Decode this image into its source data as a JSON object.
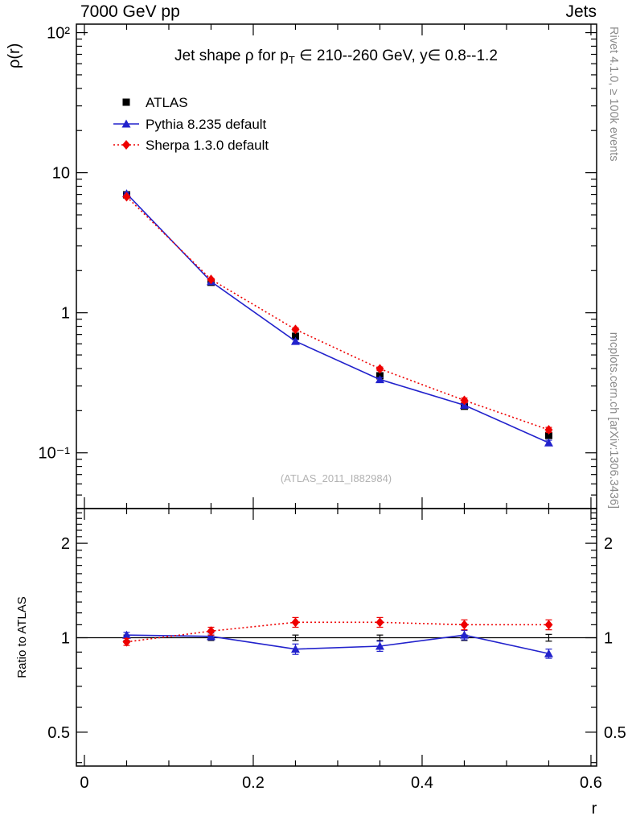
{
  "header": {
    "left": "7000 GeV pp",
    "right": "Jets"
  },
  "sidebar_right": {
    "top": "Rivet 4.1.0, ≥ 100k events",
    "bottom": "mcplots.cern.ch [arXiv:1306.3436]"
  },
  "watermark": "(ATLAS_2011_I882984)",
  "colors": {
    "atlas": "#000000",
    "pythia": "#2222cc",
    "sherpa": "#ee0000",
    "frame": "#000000",
    "watermark": "#b2b2b2",
    "side_text": "#8a8a8a"
  },
  "chart_data": {
    "type": "line",
    "yscale": "log",
    "ratio_yscale": "log",
    "title": {
      "pre": "Jet shape ρ for p",
      "sub": "T",
      "post": " ∈ 210--260 GeV, y∈ 0.8--1.2"
    },
    "xlabel": "r",
    "ylabel": "ρ(r)",
    "ratio_label": "Ratio to ATLAS",
    "x": [
      0.05,
      0.15,
      0.25,
      0.35,
      0.45,
      0.55
    ],
    "xlim": [
      -0.0095,
      0.6067
    ],
    "ylim": [
      0.04,
      115
    ],
    "ratio_ylim": [
      0.39,
      2.58
    ],
    "x_major_ticks": [
      0,
      0.2,
      0.4,
      0.6
    ],
    "x_major_labels": [
      "0",
      "0.2",
      "0.4",
      "0.6"
    ],
    "x_minor_step": 0.05,
    "y_major_ticks": [
      {
        "v": 100,
        "label": "10²"
      },
      {
        "v": 10,
        "label": "10"
      },
      {
        "v": 1,
        "label": "1"
      },
      {
        "v": 0.1,
        "label": "10⁻¹"
      }
    ],
    "ratio_major_ticks": [
      {
        "v": 2,
        "label": "2"
      },
      {
        "v": 1,
        "label": "1"
      },
      {
        "v": 0.5,
        "label": "0.5"
      }
    ],
    "series": [
      {
        "name": "ATLAS",
        "color": "#000000",
        "marker": "square",
        "line": "none",
        "values": [
          6.95,
          1.65,
          0.68,
          0.355,
          0.215,
          0.133
        ],
        "errors": [
          0.18,
          0.045,
          0.02,
          0.012,
          0.008,
          0.006
        ],
        "ratio": [
          1.0,
          1.0,
          1.0,
          1.0,
          1.0,
          1.0
        ],
        "ratio_errors": [
          0.02,
          0.02,
          0.02,
          0.02,
          0.02,
          0.025
        ],
        "ratio_marker": false
      },
      {
        "name": "Pythia 8.235 default",
        "color": "#2222cc",
        "marker": "triangle",
        "line": "solid",
        "values": [
          7.09,
          1.67,
          0.626,
          0.334,
          0.219,
          0.118
        ],
        "errors": [
          0.1,
          0.03,
          0.015,
          0.01,
          0.007,
          0.005
        ],
        "ratio": [
          1.02,
          1.01,
          0.92,
          0.94,
          1.02,
          0.89
        ],
        "ratio_errors": [
          0.02,
          0.025,
          0.035,
          0.035,
          0.035,
          0.03
        ]
      },
      {
        "name": "Sherpa 1.3.0 default",
        "color": "#ee0000",
        "marker": "diamond",
        "line": "dotted",
        "values": [
          6.74,
          1.73,
          0.76,
          0.398,
          0.237,
          0.146
        ],
        "errors": [
          0.1,
          0.03,
          0.02,
          0.012,
          0.009,
          0.006
        ],
        "ratio": [
          0.97,
          1.05,
          1.12,
          1.12,
          1.1,
          1.1
        ],
        "ratio_errors": [
          0.025,
          0.03,
          0.04,
          0.04,
          0.04,
          0.04
        ]
      }
    ]
  }
}
